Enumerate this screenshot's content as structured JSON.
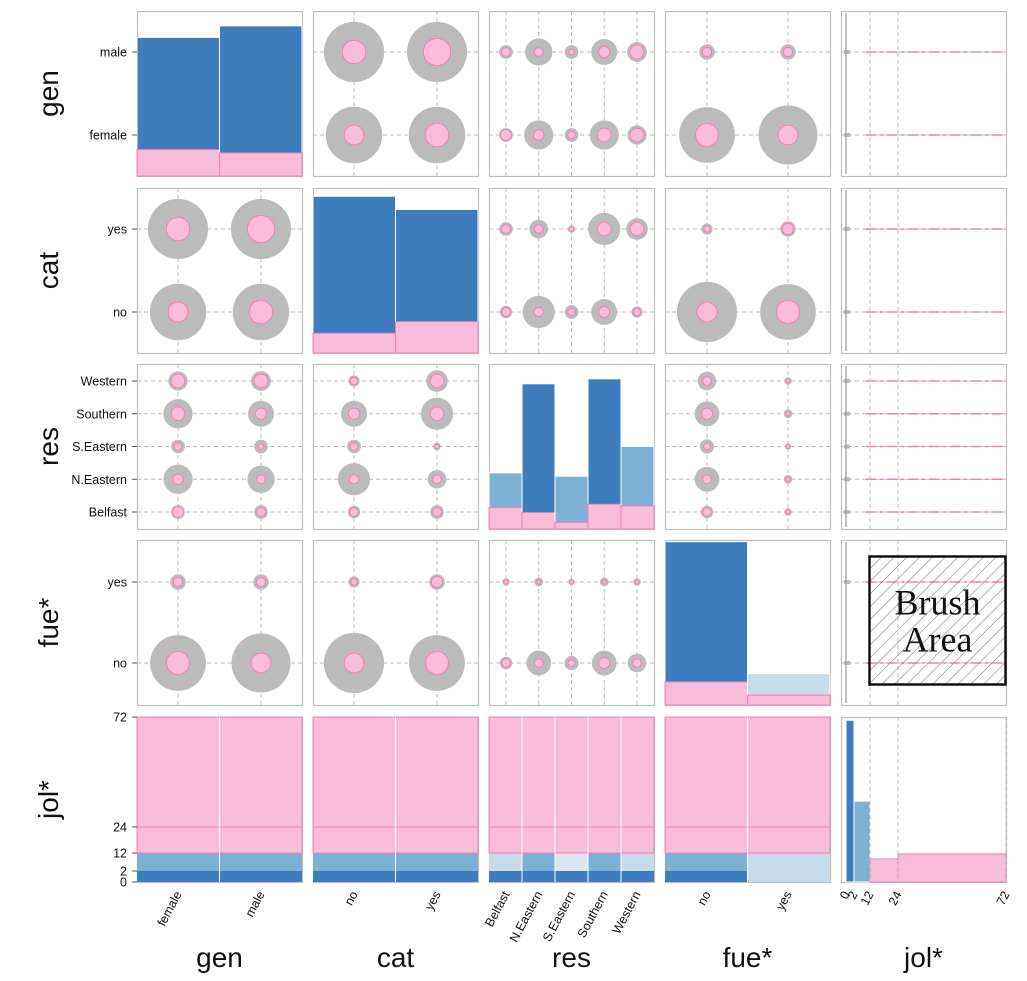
{
  "chart_data": {
    "type": "scatterplot-matrix",
    "variables": [
      {
        "key": "gen",
        "label": "gen",
        "kind": "categorical",
        "categories": [
          "female",
          "male"
        ]
      },
      {
        "key": "cat",
        "label": "cat",
        "kind": "categorical",
        "categories": [
          "no",
          "yes"
        ]
      },
      {
        "key": "res",
        "label": "res",
        "kind": "categorical",
        "categories": [
          "Belfast",
          "N.Eastern",
          "S.Eastern",
          "Southern",
          "Western"
        ]
      },
      {
        "key": "fue",
        "label": "fue*",
        "kind": "categorical",
        "categories": [
          "no",
          "yes"
        ]
      },
      {
        "key": "jol",
        "label": "jol*",
        "kind": "binned",
        "ticks": [
          0,
          2,
          12,
          24,
          72
        ],
        "range": [
          0,
          72
        ]
      }
    ],
    "colors": {
      "total": "#bbbbbb",
      "selected": "#f9bcd9",
      "selected_stroke": "#f27eb7",
      "bar_dark": "#3d7cbd",
      "bar_mid": "#7eb0d5",
      "bar_light": "#c7dcea",
      "grid": "#bbbbbb",
      "frame": "#bfbfbf"
    },
    "histograms": {
      "gen": {
        "total": [
          0.84,
          0.91
        ],
        "selected": [
          0.16,
          0.14
        ]
      },
      "cat": {
        "total": [
          0.95,
          0.87
        ],
        "selected": [
          0.12,
          0.19
        ]
      },
      "res": {
        "total": [
          0.34,
          0.88,
          0.32,
          0.91,
          0.5
        ],
        "selected": [
          0.13,
          0.1,
          0.04,
          0.15,
          0.14
        ]
      },
      "fue": {
        "total": [
          0.99,
          0.19
        ],
        "selected": [
          0.14,
          0.06
        ]
      },
      "jol": {
        "bins": [
          [
            0,
            2
          ],
          [
            2,
            12
          ],
          [
            12,
            24
          ],
          [
            24,
            72
          ]
        ],
        "total": [
          0.98,
          0.49,
          0.14,
          0.17
        ],
        "selected": [
          0.0,
          0.0,
          0.14,
          0.17
        ]
      }
    },
    "counts": {
      "gen_cat": {
        "total": [
          [
            0.91,
            0.91
          ],
          [
            0.97,
            0.97
          ]
        ],
        "selected": [
          [
            0.32,
            0.38
          ],
          [
            0.38,
            0.44
          ]
        ]
      },
      "gen_res": {
        "total": [
          [
            0.22,
            0.22
          ],
          [
            0.47,
            0.44
          ],
          [
            0.22,
            0.22
          ],
          [
            0.47,
            0.42
          ],
          [
            0.31,
            0.32
          ]
        ],
        "selected": [
          [
            0.18,
            0.14
          ],
          [
            0.17,
            0.14
          ],
          [
            0.12,
            0.09
          ],
          [
            0.22,
            0.18
          ],
          [
            0.22,
            0.22
          ]
        ]
      },
      "gen_fue": {
        "total": [
          [
            0.9,
            0.95
          ],
          [
            0.25,
            0.25
          ]
        ],
        "selected": [
          [
            0.37,
            0.32
          ],
          [
            0.15,
            0.15
          ]
        ]
      },
      "cat_res": {
        "total": [
          [
            0.2,
            0.22
          ],
          [
            0.52,
            0.3
          ],
          [
            0.22,
            0.12
          ],
          [
            0.42,
            0.52
          ],
          [
            0.18,
            0.35
          ]
        ],
        "selected": [
          [
            0.14,
            0.14
          ],
          [
            0.15,
            0.14
          ],
          [
            0.12,
            0.07
          ],
          [
            0.18,
            0.22
          ],
          [
            0.12,
            0.22
          ]
        ]
      },
      "cat_fue": {
        "total": [
          [
            0.97,
            0.9
          ],
          [
            0.18,
            0.25
          ]
        ],
        "selected": [
          [
            0.32,
            0.37
          ],
          [
            0.1,
            0.18
          ]
        ]
      },
      "res_fue": {
        "total": [
          [
            0.2,
            0.12
          ],
          [
            0.4,
            0.14
          ],
          [
            0.23,
            0.1
          ],
          [
            0.4,
            0.14
          ],
          [
            0.3,
            0.12
          ]
        ],
        "selected": [
          [
            0.14,
            0.05
          ],
          [
            0.14,
            0.05
          ],
          [
            0.11,
            0.05
          ],
          [
            0.18,
            0.05
          ],
          [
            0.14,
            0.05
          ]
        ]
      }
    },
    "brush": {
      "label_line1": "Brush",
      "label_line2": "Area",
      "panel": "fue*-jol*",
      "jol_range": [
        12,
        72
      ]
    }
  }
}
